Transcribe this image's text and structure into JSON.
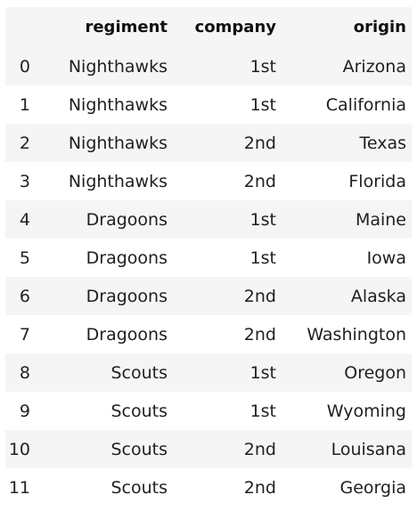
{
  "table": {
    "index_header": "",
    "columns": [
      "regiment",
      "company",
      "origin"
    ],
    "rows": [
      {
        "index": "0",
        "regiment": "Nighthawks",
        "company": "1st",
        "origin": "Arizona"
      },
      {
        "index": "1",
        "regiment": "Nighthawks",
        "company": "1st",
        "origin": "California"
      },
      {
        "index": "2",
        "regiment": "Nighthawks",
        "company": "2nd",
        "origin": "Texas"
      },
      {
        "index": "3",
        "regiment": "Nighthawks",
        "company": "2nd",
        "origin": "Florida"
      },
      {
        "index": "4",
        "regiment": "Dragoons",
        "company": "1st",
        "origin": "Maine"
      },
      {
        "index": "5",
        "regiment": "Dragoons",
        "company": "1st",
        "origin": "Iowa"
      },
      {
        "index": "6",
        "regiment": "Dragoons",
        "company": "2nd",
        "origin": "Alaska"
      },
      {
        "index": "7",
        "regiment": "Dragoons",
        "company": "2nd",
        "origin": "Washington"
      },
      {
        "index": "8",
        "regiment": "Scouts",
        "company": "1st",
        "origin": "Oregon"
      },
      {
        "index": "9",
        "regiment": "Scouts",
        "company": "1st",
        "origin": "Wyoming"
      },
      {
        "index": "10",
        "regiment": "Scouts",
        "company": "2nd",
        "origin": "Louisana"
      },
      {
        "index": "11",
        "regiment": "Scouts",
        "company": "2nd",
        "origin": "Georgia"
      }
    ]
  },
  "colors": {
    "stripe": "#f5f5f5",
    "background": "#ffffff",
    "text": "#1f1f1f"
  }
}
